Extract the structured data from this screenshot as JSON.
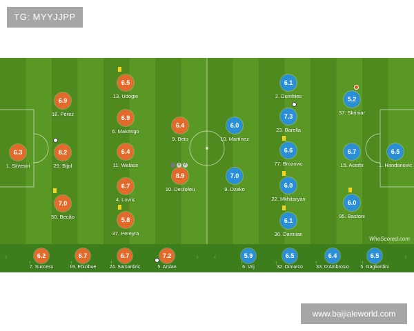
{
  "tag": "TG: MYYJJPP",
  "watermark": "www.baijialeworld.com",
  "brand": "WhoScored.com",
  "home": [
    {
      "name": "1. Silvestri",
      "rating": "6.3"
    },
    {
      "name": "18. Pérez",
      "rating": "6.9"
    },
    {
      "name": "29. Bijol",
      "rating": "8.2"
    },
    {
      "name": "50. Becão",
      "rating": "7.0"
    },
    {
      "name": "13. Udogie",
      "rating": "6.5"
    },
    {
      "name": "6. Makengo",
      "rating": "6.9"
    },
    {
      "name": "11. Walace",
      "rating": "6.4"
    },
    {
      "name": "4. Lovric",
      "rating": "6.7"
    },
    {
      "name": "37. Pereyra",
      "rating": "5.8"
    },
    {
      "name": "9. Beto",
      "rating": "6.4"
    },
    {
      "name": "10. Deulofeu",
      "rating": "8.9"
    }
  ],
  "away": [
    {
      "name": "10. Martínez",
      "rating": "6.0"
    },
    {
      "name": "9. Dzeko",
      "rating": "7.0"
    },
    {
      "name": "2. Dumfries",
      "rating": "6.1"
    },
    {
      "name": "23. Barella",
      "rating": "7.3"
    },
    {
      "name": "77. Brozovic",
      "rating": "6.6"
    },
    {
      "name": "22. Mkhitaryan",
      "rating": "6.0"
    },
    {
      "name": "36. Darmian",
      "rating": "6.1"
    },
    {
      "name": "37. Skriniar",
      "rating": "5.2"
    },
    {
      "name": "15. Acerbi",
      "rating": "6.7"
    },
    {
      "name": "95. Bastoni",
      "rating": "6.0"
    },
    {
      "name": "1. Handanovic",
      "rating": "6.5"
    }
  ],
  "home_subs": [
    {
      "name": "7. Success",
      "rating": "6.2"
    },
    {
      "name": "19. Ehizibue",
      "rating": "6.7"
    },
    {
      "name": "24. Samardzic",
      "rating": "6.7"
    },
    {
      "name": "5. Arslan",
      "rating": "7.2"
    }
  ],
  "away_subs": [
    {
      "name": "6. Vrij",
      "rating": "5.9"
    },
    {
      "name": "32. Dimarco",
      "rating": "6.5"
    },
    {
      "name": "33. D'Ambrosio",
      "rating": "6.4"
    },
    {
      "name": "5. Gagliardini",
      "rating": "6.5"
    }
  ],
  "colors": {
    "home": "#e26a2b",
    "away": "#2b8fd6",
    "pitch": "#5a9826",
    "yellow_card": "#f2d21b"
  },
  "icons": [
    "yellow-card-icon",
    "sub-off-arrow-icon",
    "sub-on-arrow-icon",
    "ball-icon",
    "chevron-left-icon",
    "chevron-right-icon"
  ]
}
